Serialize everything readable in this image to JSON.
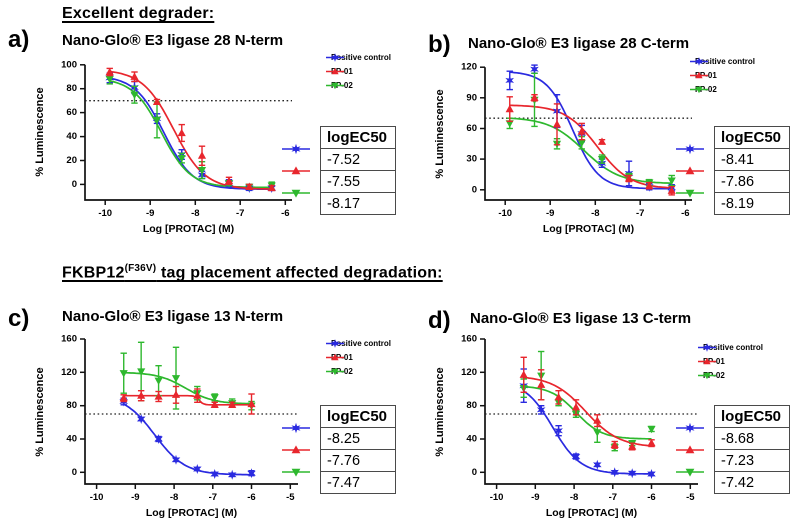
{
  "headings": {
    "first": "Excellent degrader:",
    "second_base": "FKBP12",
    "second_sup": "(F36V)",
    "second_rest": " tag placement affected degradation:"
  },
  "colors": {
    "positive": "#2a2ae0",
    "fp01": "#e8262d",
    "fp02": "#2eb82e",
    "dotted_line": "#222222"
  },
  "panels": [
    {
      "letter": "a)",
      "table": {
        "header": "logEC50",
        "rows": [
          "-7.52",
          "-7.55",
          "-8.17"
        ]
      }
    },
    {
      "letter": "b)",
      "table": {
        "header": "logEC50",
        "rows": [
          "-8.41",
          "-7.86",
          "-8.19"
        ]
      }
    },
    {
      "letter": "c)",
      "table": {
        "header": "logEC50",
        "rows": [
          "-8.25",
          "-7.76",
          "-7.47"
        ]
      }
    },
    {
      "letter": "d)",
      "table": {
        "header": "logEC50",
        "rows": [
          "-8.68",
          "-7.23",
          "-7.42"
        ]
      }
    }
  ],
  "chart_data": [
    {
      "type": "line",
      "title": "Nano-Glo® E3 ligase 28 N-term",
      "xlabel": "Log [PROTAC] (M)",
      "ylabel": "% Luminescence",
      "xlim": [
        -10.45,
        -5.85
      ],
      "ylim": [
        -13,
        104
      ],
      "xticks": [
        -10,
        -9,
        -8,
        -7,
        -6
      ],
      "yticks": [
        0,
        20,
        40,
        60,
        80,
        100
      ],
      "hline": 70,
      "legend_position": "top-right",
      "grid": false,
      "series": [
        {
          "name": "Positive control",
          "marker": "star",
          "color": "#2a2ae0",
          "x": [
            -9.9,
            -9.35,
            -8.85,
            -8.3,
            -7.85,
            -7.25,
            -6.8,
            -6.3
          ],
          "y": [
            89,
            81,
            55,
            25,
            8,
            1,
            -3,
            -3
          ],
          "err": [
            4,
            5,
            4,
            4,
            3,
            3,
            2,
            2
          ],
          "curve": {
            "top": 91,
            "bottom": -4,
            "mid": -8.7,
            "hill": 1.35
          }
        },
        {
          "name": "FP-01",
          "marker": "triangle-up",
          "color": "#e8262d",
          "x": [
            -9.9,
            -9.35,
            -8.85,
            -8.3,
            -7.85,
            -7.25,
            -6.8,
            -6.3
          ],
          "y": [
            94,
            90,
            69,
            43,
            24,
            3,
            -2,
            -3
          ],
          "err": [
            3,
            4,
            2,
            7,
            8,
            3,
            2,
            2
          ],
          "curve": {
            "top": 96,
            "bottom": -4,
            "mid": -8.48,
            "hill": 1.25
          }
        },
        {
          "name": "FP-02",
          "marker": "triangle-down",
          "color": "#2eb82e",
          "x": [
            -9.9,
            -9.35,
            -8.85,
            -8.3,
            -7.85,
            -7.25,
            -6.8,
            -6.3
          ],
          "y": [
            88,
            75,
            54,
            22,
            12,
            1,
            -2,
            -1
          ],
          "err": [
            4,
            7,
            15,
            4,
            7,
            2,
            2,
            3
          ],
          "curve": {
            "top": 89,
            "bottom": -2.5,
            "mid": -8.75,
            "hill": 1.35
          }
        }
      ]
    },
    {
      "type": "line",
      "title": "Nano-Glo® E3 ligase 28 C-term",
      "xlabel": "Log [PROTAC] (M)",
      "ylabel": "% Luminescence",
      "xlim": [
        -10.45,
        -5.85
      ],
      "ylim": [
        -10,
        127
      ],
      "xticks": [
        -10,
        -9,
        -8,
        -7,
        -6
      ],
      "yticks": [
        0,
        30,
        60,
        90,
        120
      ],
      "hline": 70,
      "legend_position": "top-right",
      "grid": false,
      "series": [
        {
          "name": "Positive control",
          "marker": "star",
          "color": "#2a2ae0",
          "x": [
            -9.9,
            -9.35,
            -8.85,
            -8.3,
            -7.85,
            -7.25,
            -6.8,
            -6.3
          ],
          "y": [
            107,
            118,
            77,
            55,
            26,
            16,
            3,
            2
          ],
          "err": [
            9,
            4,
            16,
            8,
            4,
            12,
            3,
            3
          ],
          "curve": {
            "top": 116,
            "bottom": 1,
            "mid": -8.5,
            "hill": 1.5
          }
        },
        {
          "name": "FP-01",
          "marker": "triangle-up",
          "color": "#e8262d",
          "x": [
            -9.9,
            -9.35,
            -8.85,
            -8.3,
            -7.85,
            -7.25,
            -6.8,
            -6.3
          ],
          "y": [
            79,
            90,
            64,
            57,
            47,
            11,
            4,
            -1
          ],
          "err": [
            12,
            3,
            20,
            8,
            2,
            3,
            3,
            4
          ],
          "curve": {
            "top": 83,
            "bottom": 1,
            "mid": -7.95,
            "hill": 1.2
          }
        },
        {
          "name": "FP-02",
          "marker": "triangle-down",
          "color": "#2eb82e",
          "x": [
            -9.9,
            -9.35,
            -8.85,
            -8.3,
            -7.85,
            -7.25,
            -6.8,
            -6.3
          ],
          "y": [
            65,
            88,
            45,
            46,
            30,
            13,
            7,
            9
          ],
          "err": [
            5,
            26,
            5,
            6,
            4,
            3,
            3,
            5
          ],
          "curve": {
            "top": 71,
            "bottom": 6,
            "mid": -8.25,
            "hill": 1.1
          }
        }
      ]
    },
    {
      "type": "line",
      "title": "Nano-Glo® E3 ligase 13 N-term",
      "xlabel": "Log [PROTAC] (M)",
      "ylabel": "% Luminescence",
      "xlim": [
        -10.3,
        -4.8
      ],
      "ylim": [
        -14,
        166
      ],
      "xticks": [
        -10,
        -9,
        -8,
        -7,
        -6,
        -5
      ],
      "yticks": [
        0,
        40,
        80,
        120,
        160
      ],
      "hline": 70,
      "legend_position": "top-right",
      "grid": false,
      "series": [
        {
          "name": "Positive control",
          "marker": "star",
          "color": "#2a2ae0",
          "x": [
            -9.3,
            -8.85,
            -8.4,
            -7.95,
            -7.4,
            -6.95,
            -6.5,
            -6.0
          ],
          "y": [
            85,
            64,
            40,
            15,
            4,
            -2,
            -3,
            -1
          ],
          "err": [
            4,
            2,
            3,
            2,
            2,
            2,
            2,
            3
          ],
          "curve": {
            "top": 93,
            "bottom": -3,
            "mid": -8.5,
            "hill": 1.1
          }
        },
        {
          "name": "FP-01",
          "marker": "triangle-up",
          "color": "#e8262d",
          "x": [
            -9.3,
            -8.85,
            -8.4,
            -7.95,
            -7.4,
            -6.95,
            -6.5,
            -6.0
          ],
          "y": [
            89,
            92,
            91,
            93,
            92,
            81,
            81,
            82
          ],
          "err": [
            4,
            6,
            6,
            10,
            8,
            3,
            3,
            12
          ],
          "curve": {
            "top": 92,
            "bottom": 81,
            "mid": -7.35,
            "hill": 8
          }
        },
        {
          "name": "FP-02",
          "marker": "triangle-down",
          "color": "#2eb82e",
          "x": [
            -9.3,
            -8.85,
            -8.4,
            -7.95,
            -7.4,
            -6.95,
            -6.5,
            -6.0
          ],
          "y": [
            119,
            121,
            110,
            113,
            95,
            90,
            83,
            80
          ],
          "err": [
            24,
            35,
            18,
            37,
            8,
            4,
            5,
            5
          ],
          "curve": {
            "top": 120,
            "bottom": 82,
            "mid": -7.7,
            "hill": 1.2
          }
        }
      ]
    },
    {
      "type": "line",
      "title": "Nano-Glo® E3 ligase 13 C-term",
      "xlabel": "Log [PROTAC] (M)",
      "ylabel": "% Luminescence",
      "xlim": [
        -10.3,
        -4.8
      ],
      "ylim": [
        -14,
        166
      ],
      "xticks": [
        -10,
        -9,
        -8,
        -7,
        -6,
        -5
      ],
      "yticks": [
        0,
        40,
        80,
        120,
        160
      ],
      "hline": 70,
      "legend_position": "top-right",
      "grid": false,
      "series": [
        {
          "name": "Positive control",
          "marker": "star",
          "color": "#2a2ae0",
          "x": [
            -9.3,
            -8.85,
            -8.4,
            -7.95,
            -7.4,
            -6.95,
            -6.5,
            -6.0
          ],
          "y": [
            104,
            75,
            50,
            19,
            9,
            0,
            -1,
            -2
          ],
          "err": [
            20,
            5,
            6,
            3,
            2,
            2,
            2,
            2
          ],
          "curve": {
            "top": 110,
            "bottom": -2,
            "mid": -8.55,
            "hill": 1.2
          }
        },
        {
          "name": "FP-01",
          "marker": "triangle-up",
          "color": "#e8262d",
          "x": [
            -9.3,
            -8.85,
            -8.4,
            -7.95,
            -7.4,
            -6.95,
            -6.5,
            -6.0
          ],
          "y": [
            117,
            105,
            90,
            78,
            62,
            33,
            31,
            35
          ],
          "err": [
            21,
            18,
            8,
            9,
            7,
            4,
            4,
            4
          ],
          "curve": {
            "top": 116,
            "bottom": 30,
            "mid": -7.7,
            "hill": 1.0
          }
        },
        {
          "name": "FP-02",
          "marker": "triangle-down",
          "color": "#2eb82e",
          "x": [
            -9.3,
            -8.85,
            -8.4,
            -7.95,
            -7.4,
            -6.95,
            -6.5,
            -6.0
          ],
          "y": [
            101,
            116,
            84,
            70,
            48,
            30,
            35,
            52
          ],
          "err": [
            11,
            29,
            4,
            4,
            12,
            4,
            3,
            3
          ],
          "curve": {
            "top": 104,
            "bottom": 40,
            "mid": -7.95,
            "hill": 1.3
          }
        }
      ]
    }
  ]
}
